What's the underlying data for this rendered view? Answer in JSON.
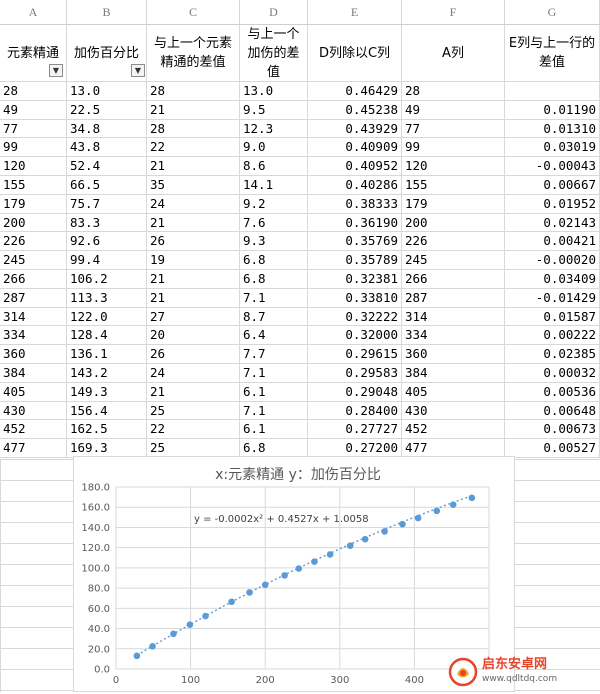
{
  "columns": [
    "A",
    "B",
    "C",
    "D",
    "E",
    "F",
    "G"
  ],
  "headers": [
    "元素精通",
    "加伤百分比",
    "与上一个元素精通的差值",
    "与上一个加伤的差值",
    "D列除以C列",
    "A列",
    "E列与上一行的差值"
  ],
  "rows": [
    [
      "28",
      "13.0",
      "28",
      "13.0",
      "0.46429",
      "28",
      ""
    ],
    [
      "49",
      "22.5",
      "21",
      "9.5",
      "0.45238",
      "49",
      "0.01190"
    ],
    [
      "77",
      "34.8",
      "28",
      "12.3",
      "0.43929",
      "77",
      "0.01310"
    ],
    [
      "99",
      "43.8",
      "22",
      "9.0",
      "0.40909",
      "99",
      "0.03019"
    ],
    [
      "120",
      "52.4",
      "21",
      "8.6",
      "0.40952",
      "120",
      "-0.00043"
    ],
    [
      "155",
      "66.5",
      "35",
      "14.1",
      "0.40286",
      "155",
      "0.00667"
    ],
    [
      "179",
      "75.7",
      "24",
      "9.2",
      "0.38333",
      "179",
      "0.01952"
    ],
    [
      "200",
      "83.3",
      "21",
      "7.6",
      "0.36190",
      "200",
      "0.02143"
    ],
    [
      "226",
      "92.6",
      "26",
      "9.3",
      "0.35769",
      "226",
      "0.00421"
    ],
    [
      "245",
      "99.4",
      "19",
      "6.8",
      "0.35789",
      "245",
      "-0.00020"
    ],
    [
      "266",
      "106.2",
      "21",
      "6.8",
      "0.32381",
      "266",
      "0.03409"
    ],
    [
      "287",
      "113.3",
      "21",
      "7.1",
      "0.33810",
      "287",
      "-0.01429"
    ],
    [
      "314",
      "122.0",
      "27",
      "8.7",
      "0.32222",
      "314",
      "0.01587"
    ],
    [
      "334",
      "128.4",
      "20",
      "6.4",
      "0.32000",
      "334",
      "0.00222"
    ],
    [
      "360",
      "136.1",
      "26",
      "7.7",
      "0.29615",
      "360",
      "0.02385"
    ],
    [
      "384",
      "143.2",
      "24",
      "7.1",
      "0.29583",
      "384",
      "0.00032"
    ],
    [
      "405",
      "149.3",
      "21",
      "6.1",
      "0.29048",
      "405",
      "0.00536"
    ],
    [
      "430",
      "156.4",
      "25",
      "7.1",
      "0.28400",
      "430",
      "0.00648"
    ],
    [
      "452",
      "162.5",
      "22",
      "6.1",
      "0.27727",
      "452",
      "0.00673"
    ],
    [
      "477",
      "169.3",
      "25",
      "6.8",
      "0.27200",
      "477",
      "0.00527"
    ]
  ],
  "chart_data": {
    "type": "scatter",
    "title": "x:元素精通   y：加伤百分比",
    "trendline_label": "y = -0.0002x² + 0.4527x + 1.0058",
    "trendline": {
      "type": "polynomial",
      "a": -0.0002,
      "b": 0.4527,
      "c": 1.0058
    },
    "x": [
      28,
      49,
      77,
      99,
      120,
      155,
      179,
      200,
      226,
      245,
      266,
      287,
      314,
      334,
      360,
      384,
      405,
      430,
      452,
      477
    ],
    "y": [
      13.0,
      22.5,
      34.8,
      43.8,
      52.4,
      66.5,
      75.7,
      83.3,
      92.6,
      99.4,
      106.2,
      113.3,
      122.0,
      128.4,
      136.1,
      143.2,
      149.3,
      156.4,
      162.5,
      169.3
    ],
    "xlim": [
      0,
      500
    ],
    "ylim": [
      0,
      180
    ],
    "xticks": [
      "0",
      "100",
      "200",
      "300",
      "400"
    ],
    "yticks": [
      "0.0",
      "20.0",
      "40.0",
      "60.0",
      "80.0",
      "100.0",
      "120.0",
      "140.0",
      "160.0",
      "180.0"
    ],
    "grid": true,
    "marker_color": "#5b9bd5",
    "trend_color": "#5b9bd5"
  },
  "watermark": {
    "text": "启东安卓网",
    "url": "www.qdltdq.com",
    "brand_color": "#e8442c"
  }
}
